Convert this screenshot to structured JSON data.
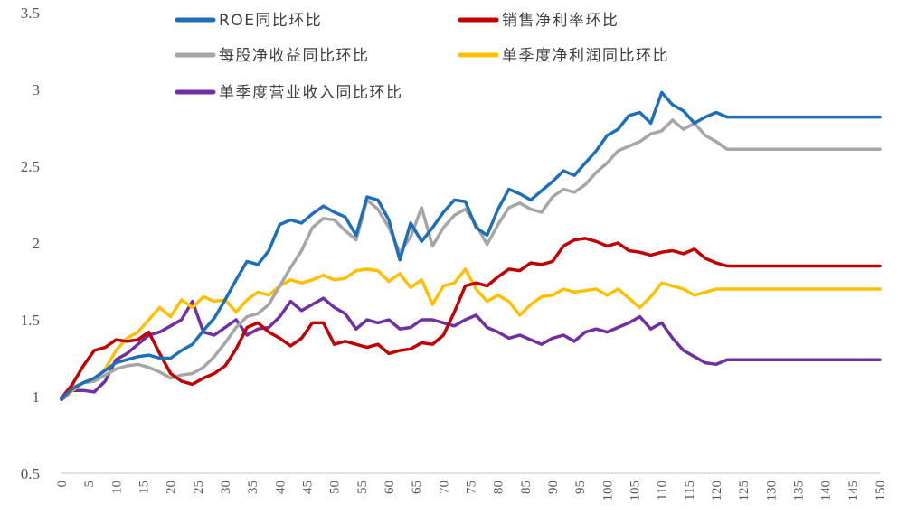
{
  "chart_data": {
    "type": "line",
    "title": "",
    "xlabel": "",
    "ylabel": "",
    "xlim": [
      0,
      150
    ],
    "ylim": [
      0.5,
      3.5
    ],
    "yticks": [
      "0.5",
      "1",
      "1.5",
      "2",
      "2.5",
      "3",
      "3.5"
    ],
    "xticks": [
      "0",
      "5",
      "10",
      "15",
      "20",
      "25",
      "30",
      "35",
      "40",
      "45",
      "50",
      "55",
      "60",
      "65",
      "70",
      "75",
      "80",
      "85",
      "90",
      "95",
      "100",
      "105",
      "110",
      "115",
      "120",
      "125",
      "130",
      "135",
      "140",
      "145",
      "150"
    ],
    "legend_position": "top",
    "series": [
      {
        "name": "ROE同比环比",
        "color": "#1F6FB8",
        "x": [
          0,
          2,
          4,
          6,
          8,
          10,
          12,
          14,
          16,
          18,
          20,
          22,
          24,
          26,
          28,
          30,
          32,
          34,
          36,
          38,
          40,
          42,
          44,
          46,
          48,
          50,
          52,
          54,
          56,
          58,
          60,
          62,
          64,
          66,
          68,
          70,
          72,
          74,
          76,
          78,
          80,
          82,
          84,
          86,
          88,
          90,
          92,
          94,
          96,
          98,
          100,
          102,
          104,
          106,
          108,
          110,
          112,
          114,
          116,
          118,
          120,
          122,
          124,
          130,
          140,
          150
        ],
        "values": [
          0.99,
          1.05,
          1.09,
          1.12,
          1.17,
          1.22,
          1.24,
          1.26,
          1.27,
          1.25,
          1.25,
          1.3,
          1.34,
          1.43,
          1.51,
          1.63,
          1.76,
          1.88,
          1.86,
          1.95,
          2.12,
          2.15,
          2.13,
          2.19,
          2.24,
          2.2,
          2.17,
          2.05,
          2.3,
          2.28,
          2.15,
          1.89,
          2.13,
          2.01,
          2.1,
          2.2,
          2.28,
          2.27,
          2.1,
          2.05,
          2.22,
          2.35,
          2.32,
          2.28,
          2.34,
          2.4,
          2.47,
          2.44,
          2.52,
          2.6,
          2.7,
          2.74,
          2.83,
          2.85,
          2.78,
          2.98,
          2.9,
          2.86,
          2.78,
          2.82,
          2.85,
          2.82,
          2.82,
          2.82,
          2.82,
          2.82
        ]
      },
      {
        "name": "销售净利率环比",
        "color": "#C00000",
        "x": [
          0,
          2,
          4,
          6,
          8,
          10,
          12,
          14,
          16,
          18,
          20,
          22,
          24,
          26,
          28,
          30,
          32,
          34,
          36,
          38,
          40,
          42,
          44,
          46,
          48,
          50,
          52,
          54,
          56,
          58,
          60,
          62,
          64,
          66,
          68,
          70,
          72,
          74,
          76,
          78,
          80,
          82,
          84,
          86,
          88,
          90,
          92,
          94,
          96,
          98,
          100,
          102,
          104,
          106,
          108,
          110,
          112,
          114,
          116,
          118,
          120,
          122,
          124,
          130,
          140,
          150
        ],
        "values": [
          0.99,
          1.08,
          1.2,
          1.3,
          1.32,
          1.37,
          1.36,
          1.37,
          1.42,
          1.28,
          1.15,
          1.1,
          1.08,
          1.12,
          1.15,
          1.2,
          1.31,
          1.45,
          1.48,
          1.42,
          1.38,
          1.33,
          1.38,
          1.48,
          1.48,
          1.34,
          1.36,
          1.34,
          1.32,
          1.34,
          1.28,
          1.3,
          1.31,
          1.35,
          1.34,
          1.4,
          1.55,
          1.72,
          1.74,
          1.72,
          1.78,
          1.83,
          1.82,
          1.87,
          1.86,
          1.88,
          1.98,
          2.02,
          2.03,
          2.01,
          1.98,
          2.0,
          1.95,
          1.94,
          1.92,
          1.94,
          1.95,
          1.93,
          1.96,
          1.9,
          1.87,
          1.85,
          1.85,
          1.85,
          1.85,
          1.85
        ]
      },
      {
        "name": "每股净收益同比环比",
        "color": "#A6A6A6",
        "x": [
          0,
          2,
          4,
          6,
          8,
          10,
          12,
          14,
          16,
          18,
          20,
          22,
          24,
          26,
          28,
          30,
          32,
          34,
          36,
          38,
          40,
          42,
          44,
          46,
          48,
          50,
          52,
          54,
          56,
          58,
          60,
          62,
          64,
          66,
          68,
          70,
          72,
          74,
          76,
          78,
          80,
          82,
          84,
          86,
          88,
          90,
          92,
          94,
          96,
          98,
          100,
          102,
          104,
          106,
          108,
          110,
          112,
          114,
          116,
          118,
          120,
          122,
          124,
          130,
          140,
          150
        ],
        "values": [
          0.99,
          1.06,
          1.09,
          1.1,
          1.14,
          1.18,
          1.2,
          1.21,
          1.19,
          1.16,
          1.12,
          1.14,
          1.15,
          1.19,
          1.26,
          1.35,
          1.45,
          1.52,
          1.54,
          1.6,
          1.72,
          1.84,
          1.95,
          2.1,
          2.16,
          2.15,
          2.08,
          2.02,
          2.28,
          2.22,
          2.1,
          1.94,
          2.04,
          2.23,
          1.98,
          2.1,
          2.18,
          2.22,
          2.12,
          1.99,
          2.12,
          2.23,
          2.26,
          2.22,
          2.2,
          2.3,
          2.35,
          2.33,
          2.38,
          2.46,
          2.52,
          2.6,
          2.63,
          2.66,
          2.71,
          2.73,
          2.8,
          2.74,
          2.78,
          2.7,
          2.66,
          2.61,
          2.61,
          2.61,
          2.61,
          2.61
        ]
      },
      {
        "name": "单季度净利润同比环比",
        "color": "#FFC000",
        "x": [
          0,
          2,
          4,
          6,
          8,
          10,
          12,
          14,
          16,
          18,
          20,
          22,
          24,
          26,
          28,
          30,
          32,
          34,
          36,
          38,
          40,
          42,
          44,
          46,
          48,
          50,
          52,
          54,
          56,
          58,
          60,
          62,
          64,
          66,
          68,
          70,
          72,
          74,
          76,
          78,
          80,
          82,
          84,
          86,
          88,
          90,
          92,
          94,
          96,
          98,
          100,
          102,
          104,
          106,
          108,
          110,
          112,
          114,
          116,
          118,
          120,
          122,
          124,
          130,
          140,
          150
        ],
        "values": [
          0.99,
          1.04,
          1.09,
          1.1,
          1.18,
          1.3,
          1.38,
          1.42,
          1.5,
          1.58,
          1.52,
          1.63,
          1.58,
          1.65,
          1.62,
          1.63,
          1.55,
          1.63,
          1.68,
          1.66,
          1.72,
          1.76,
          1.74,
          1.76,
          1.79,
          1.76,
          1.77,
          1.82,
          1.83,
          1.82,
          1.75,
          1.8,
          1.71,
          1.76,
          1.6,
          1.72,
          1.74,
          1.83,
          1.7,
          1.62,
          1.66,
          1.62,
          1.53,
          1.6,
          1.65,
          1.66,
          1.7,
          1.68,
          1.69,
          1.7,
          1.66,
          1.7,
          1.64,
          1.58,
          1.65,
          1.74,
          1.72,
          1.7,
          1.66,
          1.68,
          1.7,
          1.7,
          1.7,
          1.7,
          1.7,
          1.7
        ]
      },
      {
        "name": "单季度营业收入同比环比",
        "color": "#7030A0",
        "x": [
          0,
          2,
          4,
          6,
          8,
          10,
          12,
          14,
          16,
          18,
          20,
          22,
          24,
          26,
          28,
          30,
          32,
          34,
          36,
          38,
          40,
          42,
          44,
          46,
          48,
          50,
          52,
          54,
          56,
          58,
          60,
          62,
          64,
          66,
          68,
          70,
          72,
          74,
          76,
          78,
          80,
          82,
          84,
          86,
          88,
          90,
          92,
          94,
          96,
          98,
          100,
          102,
          104,
          106,
          108,
          110,
          112,
          114,
          116,
          118,
          120,
          122,
          124,
          130,
          140,
          150
        ],
        "values": [
          0.98,
          1.04,
          1.04,
          1.03,
          1.1,
          1.24,
          1.28,
          1.34,
          1.4,
          1.42,
          1.46,
          1.5,
          1.62,
          1.42,
          1.4,
          1.45,
          1.5,
          1.4,
          1.44,
          1.45,
          1.52,
          1.62,
          1.56,
          1.6,
          1.64,
          1.58,
          1.54,
          1.44,
          1.5,
          1.48,
          1.5,
          1.44,
          1.45,
          1.5,
          1.5,
          1.48,
          1.46,
          1.5,
          1.53,
          1.45,
          1.42,
          1.38,
          1.4,
          1.37,
          1.34,
          1.38,
          1.4,
          1.36,
          1.42,
          1.44,
          1.42,
          1.45,
          1.48,
          1.52,
          1.44,
          1.48,
          1.38,
          1.3,
          1.26,
          1.22,
          1.21,
          1.24,
          1.24,
          1.24,
          1.24,
          1.24
        ]
      }
    ]
  }
}
